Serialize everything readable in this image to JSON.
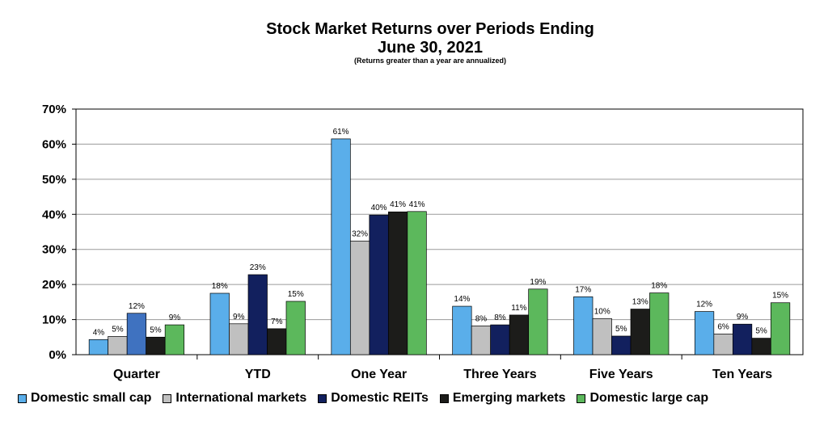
{
  "chart_data": {
    "type": "bar",
    "title": "Stock Market Returns over Periods Ending",
    "subtitle": "June 30, 2021",
    "note": "(Returns greater than a year are annualized)",
    "categories": [
      "Quarter",
      "YTD",
      "One Year",
      "Three Years",
      "Five Years",
      "Ten Years"
    ],
    "ylim": [
      0,
      70
    ],
    "yticks": [
      "0%",
      "10%",
      "20%",
      "30%",
      "40%",
      "50%",
      "60%",
      "70%"
    ],
    "grid": true,
    "legend_position": "bottom",
    "series": [
      {
        "name": "Domestic small cap",
        "color": "#5aaeea",
        "values": [
          4.3,
          17.5,
          61.5,
          13.8,
          16.5,
          12.3
        ],
        "labels": [
          "4%",
          "18%",
          "61%",
          "14%",
          "17%",
          "12%"
        ]
      },
      {
        "name": "International markets",
        "color": "#c0c0c0",
        "values": [
          5.2,
          8.8,
          32.4,
          8.2,
          10.3,
          5.9
        ],
        "labels": [
          "5%",
          "9%",
          "32%",
          "8%",
          "10%",
          "6%"
        ]
      },
      {
        "name": "Domestic REITs",
        "color": "#12205e",
        "values": [
          11.8,
          22.8,
          39.8,
          8.5,
          5.3,
          8.7
        ],
        "labels": [
          "12%",
          "23%",
          "40%",
          "8%",
          "5%",
          "9%"
        ]
      },
      {
        "name": "Emerging markets",
        "color": "#1c1c1a",
        "values": [
          5.0,
          7.4,
          40.7,
          11.3,
          13.0,
          4.7
        ],
        "labels": [
          "5%",
          "7%",
          "41%",
          "11%",
          "13%",
          "5%"
        ]
      },
      {
        "name": "Domestic large cap",
        "color": "#5cb85c",
        "values": [
          8.5,
          15.2,
          40.8,
          18.7,
          17.6,
          14.8
        ],
        "labels": [
          "9%",
          "15%",
          "41%",
          "19%",
          "18%",
          "15%"
        ]
      }
    ],
    "quarter_reit_color": "#3f72c0"
  }
}
